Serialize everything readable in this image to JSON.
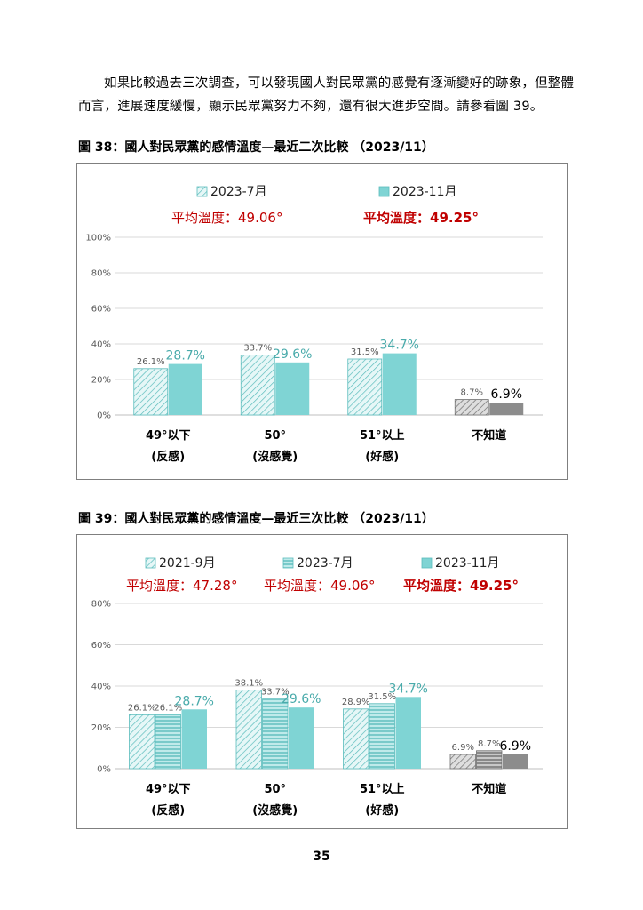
{
  "paragraph": "如果比較過去三次調查，可以發現國人對民眾黨的感覺有逐漸變好的跡象，但整體而言，進展速度緩慢，顯示民眾黨努力不夠，還有很大進步空間。請參看圖 39。",
  "page_number": "35",
  "colors": {
    "teal": "#7fd4d4",
    "teal_hatch": "#5bbcbc",
    "gray": "#8c8c8c",
    "gray_hatch": "#6e6e6e",
    "avg_red": "#c00000",
    "grid": "#d9d9d9"
  },
  "chart_data": [
    {
      "type": "bar",
      "title": "圖 38：國人對民眾黨的感情溫度—最近二次比較 （2023/11）",
      "categories": [
        "49°以下",
        "50°",
        "51°以上",
        "不知道"
      ],
      "category_sublabels": [
        "(反感)",
        "(沒感覺)",
        "(好感)",
        ""
      ],
      "series": [
        {
          "name": "2023-7月",
          "pattern": "diagonal-light",
          "avg_label": "平均溫度：49.06°",
          "values": [
            26.1,
            33.7,
            31.5,
            8.7
          ],
          "labels": [
            "26.1%",
            "33.7%",
            "31.5%",
            "8.7%"
          ]
        },
        {
          "name": "2023-11月",
          "pattern": "solid",
          "avg_label": "平均溫度：49.25°",
          "values": [
            28.7,
            29.6,
            34.7,
            6.9
          ],
          "labels": [
            "28.7%",
            "29.6%",
            "34.7%",
            "6.9%"
          ]
        }
      ],
      "yticks": [
        "0%",
        "20%",
        "40%",
        "60%",
        "80%",
        "100%"
      ],
      "ylim": [
        0,
        100
      ],
      "grid": true,
      "legend_position": "top"
    },
    {
      "type": "bar",
      "title": "圖 39：國人對民眾黨的感情溫度—最近三次比較 （2023/11）",
      "categories": [
        "49°以下",
        "50°",
        "51°以上",
        "不知道"
      ],
      "category_sublabels": [
        "(反感)",
        "(沒感覺)",
        "(好感)",
        ""
      ],
      "series": [
        {
          "name": "2021-9月",
          "pattern": "diagonal-light",
          "avg_label": "平均溫度：47.28°",
          "values": [
            26.1,
            38.1,
            28.9,
            6.9
          ],
          "labels": [
            "26.1%",
            "38.1%",
            "28.9%",
            "6.9%"
          ]
        },
        {
          "name": "2023-7月",
          "pattern": "horizontal",
          "avg_label": "平均溫度：49.06°",
          "values": [
            26.1,
            33.7,
            31.5,
            8.7
          ],
          "labels": [
            "26.1%",
            "33.7%",
            "31.5%",
            "8.7%"
          ]
        },
        {
          "name": "2023-11月",
          "pattern": "solid",
          "avg_label": "平均溫度：49.25°",
          "values": [
            28.7,
            29.6,
            34.7,
            6.9
          ],
          "labels": [
            "28.7%",
            "29.6%",
            "34.7%",
            "6.9%"
          ]
        }
      ],
      "yticks": [
        "0%",
        "20%",
        "40%",
        "60%",
        "80%"
      ],
      "ylim": [
        0,
        80
      ],
      "grid": true,
      "legend_position": "top"
    }
  ]
}
